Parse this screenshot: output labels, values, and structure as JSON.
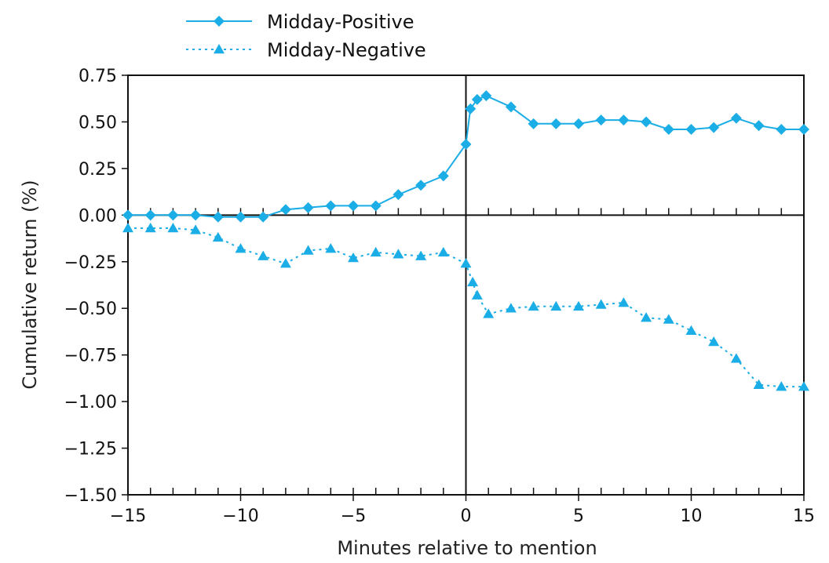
{
  "chart_data": {
    "type": "line",
    "title": "",
    "xlabel": "Minutes relative to mention",
    "ylabel": "Cumulative return (%)",
    "xlim": [
      -15,
      15
    ],
    "ylim": [
      -1.5,
      0.75
    ],
    "x_ticks": [
      -15,
      -10,
      -5,
      0,
      5,
      10,
      15
    ],
    "x_tick_labels": [
      "−15",
      "−10",
      "−5",
      "0",
      "5",
      "10",
      "15"
    ],
    "y_ticks": [
      0.75,
      0.5,
      0.25,
      0,
      -0.25,
      -0.5,
      -0.75,
      -1,
      -1.25,
      -1.5
    ],
    "y_tick_labels": [
      "0.75",
      "0.50",
      "0.25",
      "0.00",
      "−0.25",
      "−0.50",
      "−0.75",
      "−1.00",
      "−1.25",
      "−1.50"
    ],
    "grid": false,
    "reference_lines": {
      "x": 0,
      "y": 0
    },
    "legend_position": "top-left, outside plot",
    "series": [
      {
        "name": "Midday-Positive",
        "style": "solid",
        "marker": "diamond",
        "color": "#1BADE6",
        "points": [
          [
            -15,
            0.0
          ],
          [
            -14,
            0.0
          ],
          [
            -13,
            0.0
          ],
          [
            -12,
            0.0
          ],
          [
            -11,
            -0.01
          ],
          [
            -10,
            -0.01
          ],
          [
            -9,
            -0.01
          ],
          [
            -8,
            0.03
          ],
          [
            -7,
            0.04
          ],
          [
            -6,
            0.05
          ],
          [
            -5,
            0.05
          ],
          [
            -4,
            0.05
          ],
          [
            -3,
            0.11
          ],
          [
            -2,
            0.16
          ],
          [
            -1,
            0.21
          ],
          [
            0,
            0.38
          ],
          [
            0.2,
            0.57
          ],
          [
            0.5,
            0.62
          ],
          [
            0.9,
            0.64
          ],
          [
            2,
            0.58
          ],
          [
            3,
            0.49
          ],
          [
            4,
            0.49
          ],
          [
            5,
            0.49
          ],
          [
            6,
            0.51
          ],
          [
            7,
            0.51
          ],
          [
            8,
            0.5
          ],
          [
            9,
            0.46
          ],
          [
            10,
            0.46
          ],
          [
            11,
            0.47
          ],
          [
            12,
            0.52
          ],
          [
            13,
            0.48
          ],
          [
            14,
            0.46
          ],
          [
            15,
            0.46
          ]
        ]
      },
      {
        "name": "Midday-Negative",
        "style": "dotted",
        "marker": "triangle",
        "color": "#1BADE6",
        "points": [
          [
            -15,
            -0.07
          ],
          [
            -14,
            -0.07
          ],
          [
            -13,
            -0.07
          ],
          [
            -12,
            -0.08
          ],
          [
            -11,
            -0.12
          ],
          [
            -10,
            -0.18
          ],
          [
            -9,
            -0.22
          ],
          [
            -8,
            -0.26
          ],
          [
            -7,
            -0.19
          ],
          [
            -6,
            -0.18
          ],
          [
            -5,
            -0.23
          ],
          [
            -4,
            -0.2
          ],
          [
            -3,
            -0.21
          ],
          [
            -2,
            -0.22
          ],
          [
            -1,
            -0.2
          ],
          [
            0,
            -0.26
          ],
          [
            0.3,
            -0.36
          ],
          [
            0.5,
            -0.43
          ],
          [
            1,
            -0.53
          ],
          [
            2,
            -0.5
          ],
          [
            3,
            -0.49
          ],
          [
            4,
            -0.49
          ],
          [
            5,
            -0.49
          ],
          [
            6,
            -0.48
          ],
          [
            7,
            -0.47
          ],
          [
            8,
            -0.55
          ],
          [
            9,
            -0.56
          ],
          [
            10,
            -0.62
          ],
          [
            11,
            -0.68
          ],
          [
            12,
            -0.77
          ],
          [
            13,
            -0.91
          ],
          [
            14,
            -0.92
          ],
          [
            15,
            -0.92
          ]
        ]
      }
    ]
  }
}
